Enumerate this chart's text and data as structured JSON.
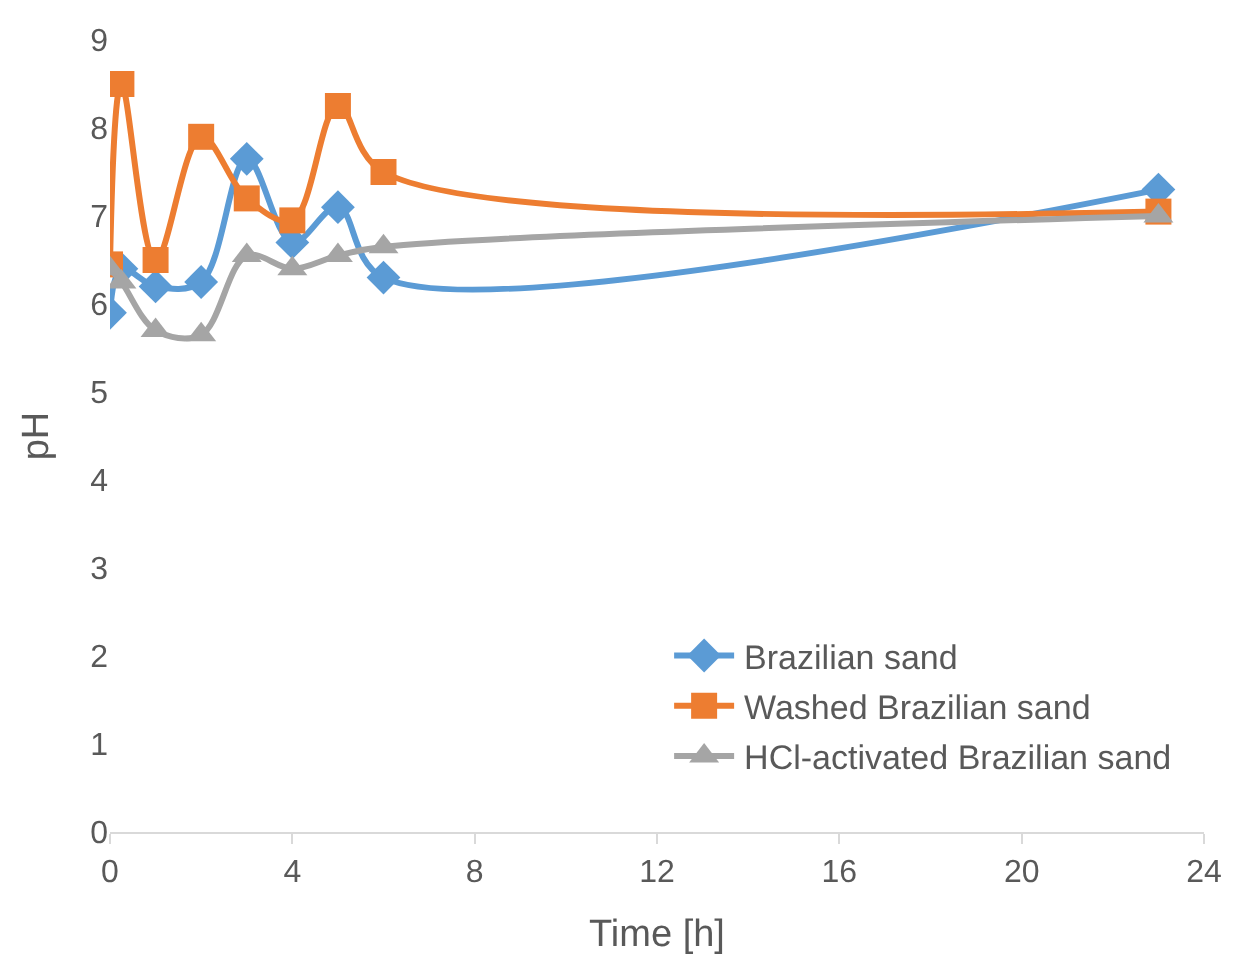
{
  "chart_data": {
    "type": "line",
    "xlabel": "Time [h]",
    "ylabel": "pH",
    "x": [
      0,
      0.25,
      1,
      2,
      3,
      4,
      5,
      6,
      23
    ],
    "xlim": [
      0,
      24
    ],
    "xticks": [
      0,
      4,
      8,
      12,
      16,
      20,
      24
    ],
    "ylim": [
      0,
      9
    ],
    "yticks": [
      0,
      1,
      2,
      3,
      4,
      5,
      6,
      7,
      8,
      9
    ],
    "legend": "bottom right",
    "series": [
      {
        "name": "Brazilian sand",
        "color": "#5b9bd5",
        "marker": "diamond",
        "values": [
          5.9,
          6.4,
          6.2,
          6.25,
          7.65,
          6.7,
          7.1,
          6.3,
          7.3
        ]
      },
      {
        "name": "Washed Brazilian sand",
        "color": "#ed7d31",
        "marker": "square",
        "values": [
          6.45,
          8.5,
          6.5,
          7.9,
          7.2,
          6.95,
          8.25,
          7.5,
          7.05
        ]
      },
      {
        "name": "HCl-activated Brazilian sand",
        "color": "#a5a5a5",
        "marker": "triangle",
        "values": [
          6.4,
          6.25,
          5.7,
          5.65,
          6.55,
          6.4,
          6.55,
          6.65,
          7.0
        ]
      }
    ]
  }
}
